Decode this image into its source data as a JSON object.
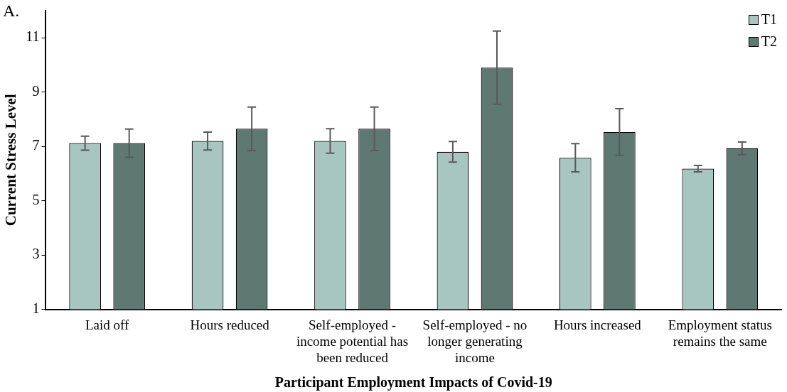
{
  "chart_data": {
    "type": "bar",
    "categories": [
      "Laid off",
      "Hours reduced",
      "Self-employed - income potential has been reduced",
      "Self-employed - no longer generating income",
      "Hours increased",
      "Employment status remains the same"
    ],
    "series": [
      {
        "name": "T1",
        "color": "#a8c6c0",
        "values": [
          7.12,
          7.2,
          7.2,
          6.8,
          6.58,
          6.18
        ],
        "errors": [
          0.26,
          0.33,
          0.45,
          0.38,
          0.52,
          0.12
        ]
      },
      {
        "name": "T2",
        "color": "#5e7872",
        "values": [
          7.12,
          7.65,
          7.65,
          9.9,
          7.53,
          6.93
        ],
        "errors": [
          0.52,
          0.8,
          0.8,
          1.35,
          0.86,
          0.23
        ]
      }
    ],
    "xlabel": "Participant Employment Impacts of Covid-19",
    "ylabel": "Current Stress Level",
    "ylim": [
      1,
      12
    ],
    "yticks": [
      1,
      3,
      5,
      7,
      9,
      11
    ],
    "annotations": [
      "A."
    ],
    "grid": false,
    "legend": "top right"
  }
}
